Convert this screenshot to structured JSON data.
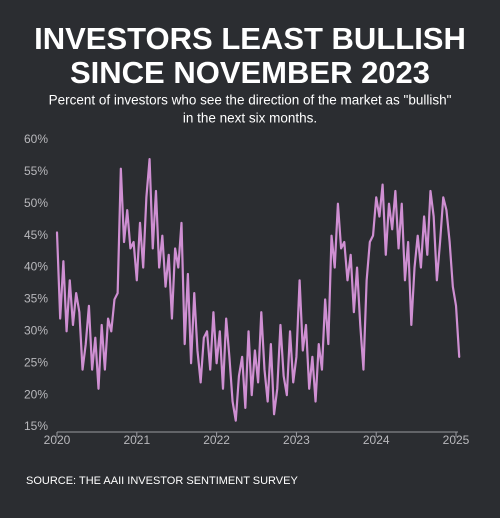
{
  "chart_data": {
    "type": "line",
    "title": [
      "INVESTORS LEAST BULLISH",
      "SINCE NOVEMBER 2023"
    ],
    "subtitle": [
      "Percent of investors who see the direction of the market as \"bullish\"",
      "in the next six months."
    ],
    "source": "SOURCE: THE AAII INVESTOR SENTIMENT SURVEY",
    "color": "#cf8fd2",
    "xlim": [
      2020,
      2025.1
    ],
    "xticks": [
      2020,
      2021,
      2022,
      2023,
      2024,
      2025
    ],
    "ylim": [
      15,
      60
    ],
    "yticks": [
      {
        "value": 15,
        "label": "15%"
      },
      {
        "value": 20,
        "label": "20%"
      },
      {
        "value": 25,
        "label": "25%"
      },
      {
        "value": 30,
        "label": "30%"
      },
      {
        "value": 35,
        "label": "35%"
      },
      {
        "value": 40,
        "label": "40%"
      },
      {
        "value": 45,
        "label": "45%"
      },
      {
        "value": 50,
        "label": "50%"
      },
      {
        "value": 55,
        "label": "55%"
      },
      {
        "value": 60,
        "label": "60%"
      }
    ],
    "grid": false,
    "x": [
      2020,
      2020.04,
      2020.08,
      2020.12,
      2020.16,
      2020.2,
      2020.24,
      2020.28,
      2020.32,
      2020.36,
      2020.4,
      2020.44,
      2020.48,
      2020.52,
      2020.56,
      2020.6,
      2020.64,
      2020.68,
      2020.72,
      2020.76,
      2020.8,
      2020.84,
      2020.88,
      2020.92,
      2020.96,
      2021,
      2021.04,
      2021.08,
      2021.12,
      2021.16,
      2021.2,
      2021.24,
      2021.28,
      2021.32,
      2021.36,
      2021.4,
      2021.44,
      2021.48,
      2021.52,
      2021.56,
      2021.6,
      2021.64,
      2021.68,
      2021.72,
      2021.76,
      2021.8,
      2021.84,
      2021.88,
      2021.92,
      2021.96,
      2022,
      2022.04,
      2022.08,
      2022.12,
      2022.16,
      2022.2,
      2022.24,
      2022.28,
      2022.32,
      2022.36,
      2022.4,
      2022.44,
      2022.48,
      2022.52,
      2022.56,
      2022.6,
      2022.64,
      2022.68,
      2022.72,
      2022.76,
      2022.8,
      2022.84,
      2022.88,
      2022.92,
      2022.96,
      2023,
      2023.04,
      2023.08,
      2023.12,
      2023.16,
      2023.2,
      2023.24,
      2023.28,
      2023.32,
      2023.36,
      2023.4,
      2023.44,
      2023.48,
      2023.52,
      2023.56,
      2023.6,
      2023.64,
      2023.68,
      2023.72,
      2023.76,
      2023.8,
      2023.84,
      2023.88,
      2023.92,
      2023.96,
      2024,
      2024.04,
      2024.08,
      2024.12,
      2024.16,
      2024.2,
      2024.24,
      2024.28,
      2024.32,
      2024.36,
      2024.4,
      2024.44,
      2024.48,
      2024.52,
      2024.56,
      2024.6,
      2024.64,
      2024.68,
      2024.72,
      2024.76,
      2024.8,
      2024.84,
      2024.88,
      2024.92,
      2024.96,
      2025,
      2025.04
    ],
    "values": [
      45.5,
      32,
      41,
      30,
      38,
      31,
      36,
      33,
      24,
      28,
      34,
      24,
      29,
      21,
      31,
      24,
      32,
      30,
      35,
      36,
      55.5,
      44,
      49,
      43,
      44,
      38,
      47,
      40,
      51,
      57,
      43,
      52,
      40,
      45,
      37,
      42,
      32,
      43,
      40,
      47,
      28,
      39,
      25,
      36,
      27,
      22,
      29,
      30,
      24,
      33,
      25,
      30,
      21,
      32,
      26,
      19,
      16,
      23,
      26,
      18,
      30,
      20,
      27,
      22,
      33,
      24,
      19,
      28,
      17,
      21,
      31,
      23,
      20,
      30,
      22,
      26,
      38,
      27,
      31,
      21,
      26,
      19,
      28,
      24,
      35,
      28,
      45,
      40,
      50,
      43,
      44,
      38,
      42,
      33,
      40,
      31,
      24,
      38,
      44,
      45,
      51,
      48,
      53,
      42,
      50,
      46,
      52,
      43,
      50,
      38,
      44,
      31,
      40,
      45,
      40,
      48,
      42,
      52,
      48,
      38,
      44,
      51,
      49,
      44,
      37,
      34,
      26
    ]
  }
}
